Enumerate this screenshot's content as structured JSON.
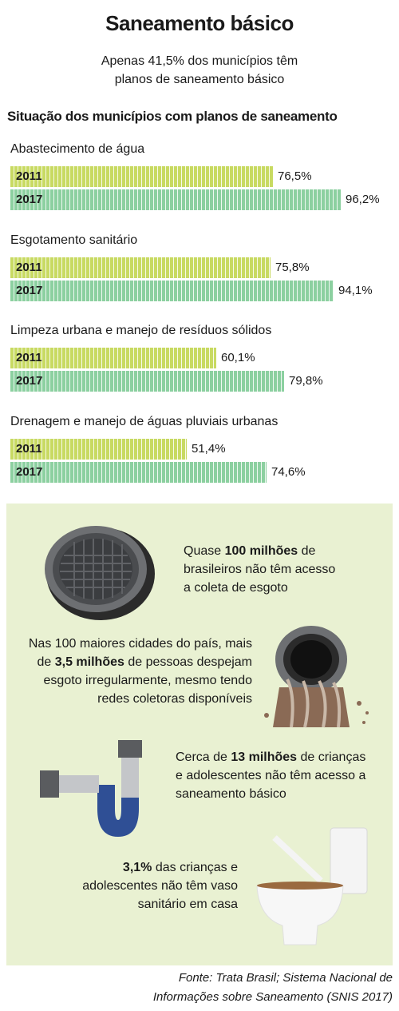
{
  "header": {
    "title": "Saneamento básico",
    "subtitle_line1": "Apenas 41,5% dos municípios têm",
    "subtitle_line2": "planos de saneamento básico"
  },
  "chart_data": {
    "type": "bar",
    "orientation": "horizontal",
    "title": "Situação dos municípios com planos de saneamento",
    "categories": [
      "Abastecimento de água",
      "Esgotamento sanitário",
      "Limpeza urbana e manejo de resíduos sólidos",
      "Drenagem e manejo de águas pluviais urbanas"
    ],
    "series": [
      {
        "name": "2011",
        "values": [
          76.5,
          75.8,
          60.1,
          51.4
        ],
        "labels": [
          "76,5%",
          "75,8%",
          "60,1%",
          "51,4%"
        ],
        "color": "#c8da62"
      },
      {
        "name": "2017",
        "values": [
          96.2,
          94.1,
          79.8,
          74.6
        ],
        "labels": [
          "96,2%",
          "94,1%",
          "79,8%",
          "74,6%"
        ],
        "color": "#8cd0a0"
      }
    ],
    "xlim": [
      0,
      100
    ],
    "unit": "%"
  },
  "facts": [
    {
      "pre": "Quase ",
      "bold": "100 milhões",
      "post": " de brasileiros não têm acesso a coleta de esgoto",
      "icon": "manhole-cover-icon"
    },
    {
      "pre": "Nas 100 maiores cidades do país, mais de ",
      "bold": "3,5 milhões",
      "post": " de pessoas despejam esgoto irregularmente, mesmo tendo redes coletoras disponíveis",
      "icon": "sewage-pipe-icon"
    },
    {
      "pre": "Cerca de ",
      "bold": "13 milhões",
      "post": " de crianças e adolescentes não têm acesso a saneamento básico",
      "icon": "drain-pipe-icon"
    },
    {
      "pre": "",
      "bold": "3,1%",
      "post": " das crianças e adolescentes não têm vaso sanitário em casa",
      "icon": "toilet-icon"
    }
  ],
  "source": {
    "line1": "Fonte: Trata Brasil; Sistema Nacional de",
    "line2": "Informações sobre Saneamento (SNIS 2017)"
  },
  "colors": {
    "panel_bg": "#e9f1d2",
    "bar_2011": "#c8da62",
    "bar_2017": "#8cd0a0"
  }
}
